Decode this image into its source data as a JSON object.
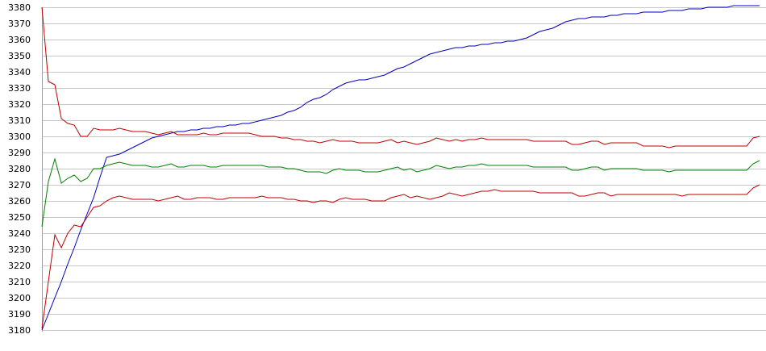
{
  "chart_data": {
    "type": "line",
    "title": "",
    "xlabel": "",
    "ylabel": "",
    "ylim": [
      3180,
      3380
    ],
    "yticks": [
      3180,
      3190,
      3200,
      3210,
      3220,
      3230,
      3240,
      3250,
      3260,
      3270,
      3280,
      3290,
      3300,
      3310,
      3320,
      3330,
      3340,
      3350,
      3360,
      3370,
      3380
    ],
    "grid": true,
    "legend": "none",
    "x": [
      0,
      1,
      2,
      3,
      4,
      5,
      6,
      7,
      8,
      9,
      10,
      11,
      12,
      13,
      14,
      15,
      16,
      17,
      18,
      19,
      20,
      21,
      22,
      23,
      24,
      25,
      26,
      27,
      28,
      29,
      30,
      31,
      32,
      33,
      34,
      35,
      36,
      37,
      38,
      39,
      40,
      41,
      42,
      43,
      44,
      45,
      46,
      47,
      48,
      49,
      50,
      51,
      52,
      53,
      54,
      55,
      56,
      57,
      58,
      59,
      60,
      61,
      62,
      63,
      64,
      65,
      66,
      67,
      68,
      69,
      70,
      71,
      72,
      73,
      74,
      75,
      76,
      77,
      78,
      79,
      80,
      81,
      82,
      83,
      84,
      85,
      86,
      87,
      88,
      89,
      90,
      91,
      92,
      93,
      94,
      95,
      96,
      97,
      98,
      99,
      100,
      101,
      102,
      103,
      104,
      105,
      106,
      107,
      108,
      109,
      110,
      111
    ],
    "series": [
      {
        "color": "#0000c0",
        "values": [
          3180,
          3190,
          3200,
          3210,
          3221,
          3231,
          3242,
          3252,
          3262,
          3275,
          3287,
          3288,
          3289,
          3291,
          3293,
          3295,
          3297,
          3299,
          3300,
          3301,
          3302,
          3303,
          3303,
          3304,
          3304,
          3305,
          3305,
          3306,
          3306,
          3307,
          3307,
          3308,
          3308,
          3309,
          3310,
          3311,
          3312,
          3313,
          3315,
          3316,
          3318,
          3321,
          3323,
          3324,
          3326,
          3329,
          3331,
          3333,
          3334,
          3335,
          3335,
          3336,
          3337,
          3338,
          3340,
          3342,
          3343,
          3345,
          3347,
          3349,
          3351,
          3352,
          3353,
          3354,
          3355,
          3355,
          3356,
          3356,
          3357,
          3357,
          3358,
          3358,
          3359,
          3359,
          3360,
          3361,
          3363,
          3365,
          3366,
          3367,
          3369,
          3371,
          3372,
          3373,
          3373,
          3374,
          3374,
          3374,
          3375,
          3375,
          3376,
          3376,
          3376,
          3377,
          3377,
          3377,
          3377,
          3378,
          3378,
          3378,
          3379,
          3379,
          3379,
          3380,
          3380,
          3380,
          3380,
          3381,
          3381,
          3381,
          3381,
          3381
        ]
      },
      {
        "color": "#c00000",
        "values": [
          3380,
          3334,
          3332,
          3311,
          3308,
          3307,
          3300,
          3300,
          3305,
          3304,
          3304,
          3304,
          3305,
          3304,
          3303,
          3303,
          3303,
          3302,
          3301,
          3302,
          3303,
          3301,
          3301,
          3301,
          3301,
          3302,
          3301,
          3301,
          3302,
          3302,
          3302,
          3302,
          3302,
          3301,
          3300,
          3300,
          3300,
          3299,
          3299,
          3298,
          3298,
          3297,
          3297,
          3296,
          3297,
          3298,
          3297,
          3297,
          3297,
          3296,
          3296,
          3296,
          3296,
          3297,
          3298,
          3296,
          3297,
          3296,
          3295,
          3296,
          3297,
          3299,
          3298,
          3297,
          3298,
          3297,
          3298,
          3298,
          3299,
          3298,
          3298,
          3298,
          3298,
          3298,
          3298,
          3298,
          3297,
          3297,
          3297,
          3297,
          3297,
          3297,
          3295,
          3295,
          3296,
          3297,
          3297,
          3295,
          3296,
          3296,
          3296,
          3296,
          3296,
          3294,
          3294,
          3294,
          3294,
          3293,
          3294,
          3294,
          3294,
          3294,
          3294,
          3294,
          3294,
          3294,
          3294,
          3294,
          3294,
          3294,
          3299,
          3300
        ]
      },
      {
        "color": "#008000",
        "values": [
          3244,
          3272,
          3286,
          3271,
          3274,
          3276,
          3272,
          3274,
          3280,
          3280,
          3282,
          3283,
          3284,
          3283,
          3282,
          3282,
          3282,
          3281,
          3281,
          3282,
          3283,
          3281,
          3281,
          3282,
          3282,
          3282,
          3281,
          3281,
          3282,
          3282,
          3282,
          3282,
          3282,
          3282,
          3282,
          3281,
          3281,
          3281,
          3280,
          3280,
          3279,
          3278,
          3278,
          3278,
          3277,
          3279,
          3280,
          3279,
          3279,
          3279,
          3278,
          3278,
          3278,
          3279,
          3280,
          3281,
          3279,
          3280,
          3278,
          3279,
          3280,
          3282,
          3281,
          3280,
          3281,
          3281,
          3282,
          3282,
          3283,
          3282,
          3282,
          3282,
          3282,
          3282,
          3282,
          3282,
          3281,
          3281,
          3281,
          3281,
          3281,
          3281,
          3279,
          3279,
          3280,
          3281,
          3281,
          3279,
          3280,
          3280,
          3280,
          3280,
          3280,
          3279,
          3279,
          3279,
          3279,
          3278,
          3279,
          3279,
          3279,
          3279,
          3279,
          3279,
          3279,
          3279,
          3279,
          3279,
          3279,
          3279,
          3283,
          3285
        ]
      },
      {
        "color": "#c00000",
        "values": [
          3181,
          3210,
          3239,
          3231,
          3240,
          3245,
          3244,
          3250,
          3256,
          3257,
          3260,
          3262,
          3263,
          3262,
          3261,
          3261,
          3261,
          3261,
          3260,
          3261,
          3262,
          3263,
          3261,
          3261,
          3262,
          3262,
          3262,
          3261,
          3261,
          3262,
          3262,
          3262,
          3262,
          3262,
          3263,
          3262,
          3262,
          3262,
          3261,
          3261,
          3260,
          3260,
          3259,
          3260,
          3260,
          3259,
          3261,
          3262,
          3261,
          3261,
          3261,
          3260,
          3260,
          3260,
          3262,
          3263,
          3264,
          3262,
          3263,
          3262,
          3261,
          3262,
          3263,
          3265,
          3264,
          3263,
          3264,
          3265,
          3266,
          3266,
          3267,
          3266,
          3266,
          3266,
          3266,
          3266,
          3266,
          3265,
          3265,
          3265,
          3265,
          3265,
          3265,
          3263,
          3263,
          3264,
          3265,
          3265,
          3263,
          3264,
          3264,
          3264,
          3264,
          3264,
          3264,
          3264,
          3264,
          3264,
          3264,
          3263,
          3264,
          3264,
          3264,
          3264,
          3264,
          3264,
          3264,
          3264,
          3264,
          3264,
          3268,
          3270
        ]
      }
    ]
  }
}
